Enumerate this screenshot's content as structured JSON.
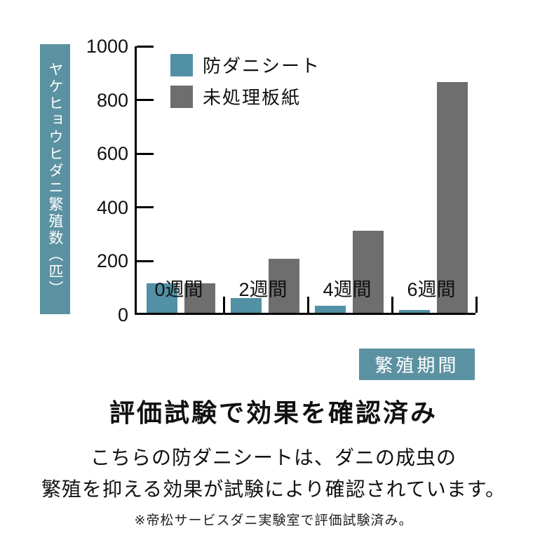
{
  "chart_data": {
    "type": "bar",
    "categories": [
      "0週間",
      "2週間",
      "4週間",
      "6週間"
    ],
    "series": [
      {
        "name": "防ダニシート",
        "color": "#5190a5",
        "values": [
          110,
          55,
          25,
          10
        ]
      },
      {
        "name": "未処理板紙",
        "color": "#6e6e6e",
        "values": [
          110,
          200,
          305,
          860
        ]
      }
    ],
    "title": "",
    "xlabel": "繁殖期間",
    "ylabel": "ヤケヒョウヒダニ繁殖数（匹）",
    "ylim": [
      0,
      1000
    ],
    "yticks": [
      0,
      200,
      400,
      600,
      800,
      1000
    ],
    "grid": false,
    "legend_position": "top-left-inside"
  },
  "colors": {
    "bar_teal": "#5190a5",
    "bar_gray": "#6e6e6e",
    "box_teal": "#5b92a1",
    "axis": "#000000",
    "text": "#111111"
  },
  "badge": {
    "label": "繁殖期間"
  },
  "section": {
    "title": "評価試験で効果を確認済み",
    "body_line1": "こちらの防ダニシートは、ダニの成虫の",
    "body_line2": "繁殖を抑える効果が試験により確認されています。",
    "footnote": "※帝松サービスダニ実験室で評価試験済み。"
  }
}
